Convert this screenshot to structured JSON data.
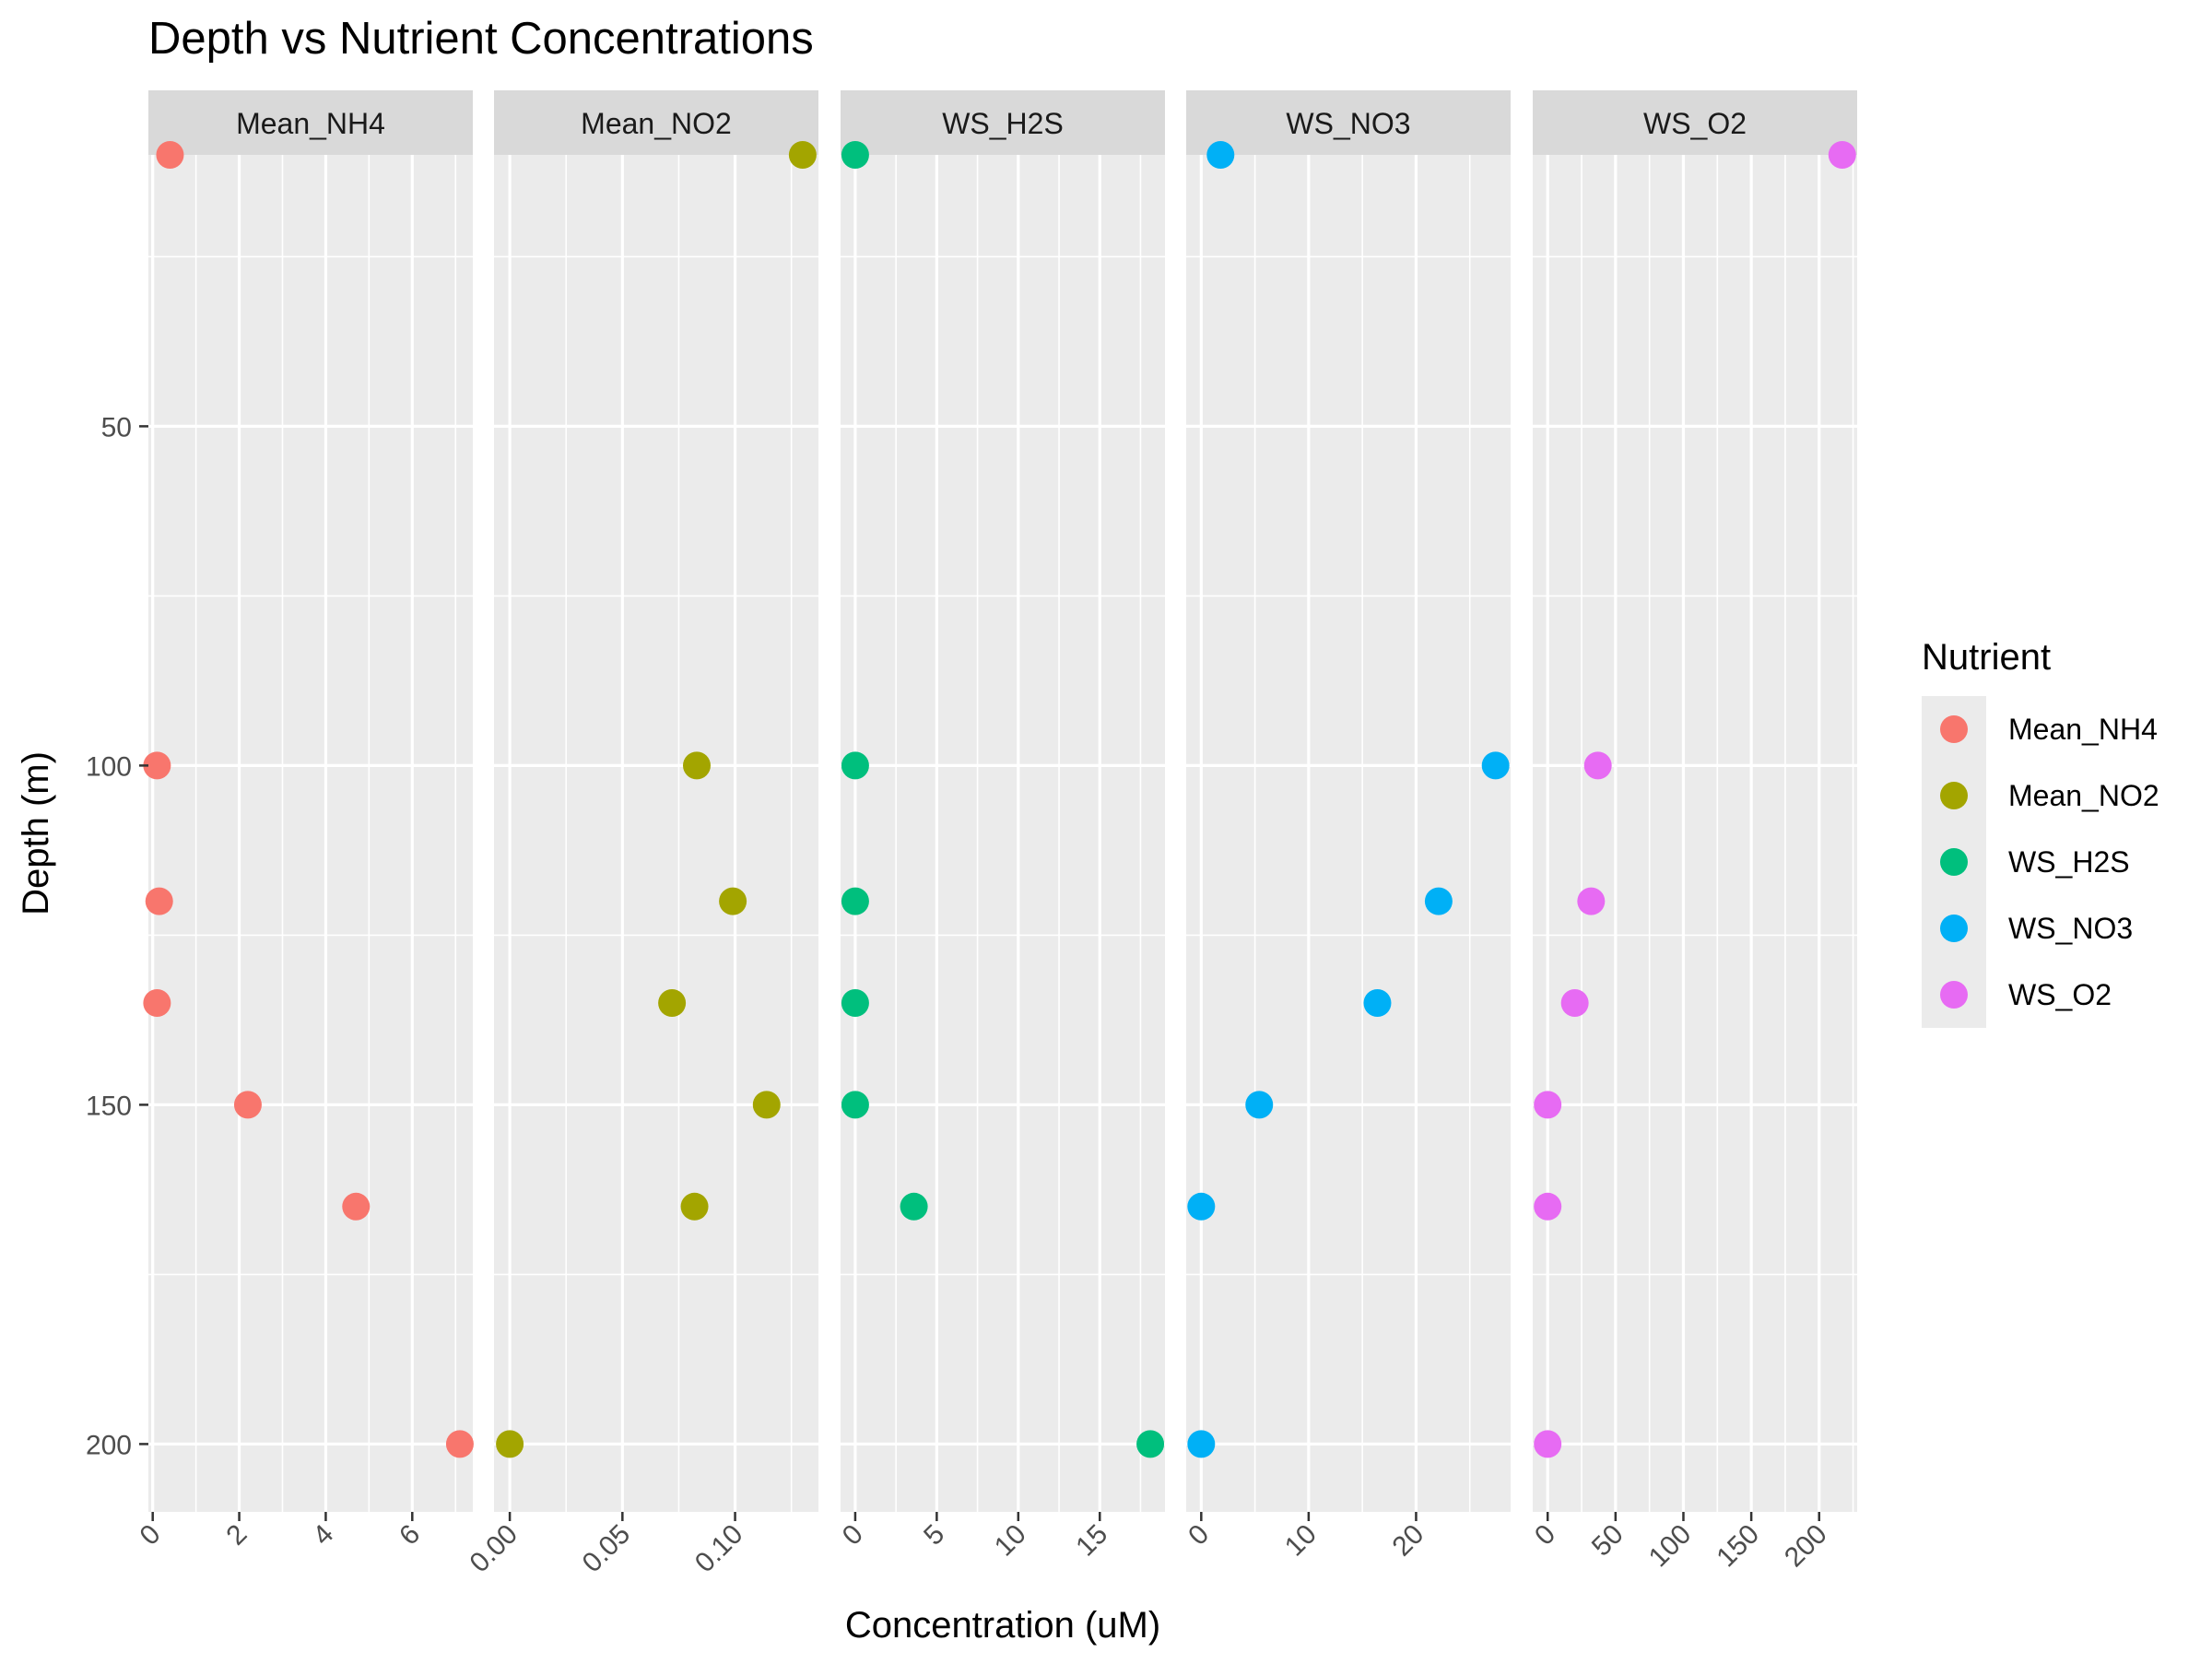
{
  "chart_data": {
    "type": "scatter",
    "title": "Depth vs Nutrient Concentrations",
    "xlabel": "Concentration (uM)",
    "ylabel": "Depth (m)",
    "y_reversed": true,
    "ylim": [
      10,
      210
    ],
    "y_ticks": [
      50,
      100,
      150,
      200
    ],
    "grid": true,
    "legend": {
      "title": "Nutrient",
      "position": "right"
    },
    "depths": [
      10,
      100,
      120,
      135,
      150,
      165,
      200
    ],
    "series": [
      {
        "name": "Mean_NH4",
        "color": "#F8766D",
        "xlim": [
          -0.1,
          7.4
        ],
        "x_ticks": [
          0,
          2,
          4,
          6
        ],
        "x_tick_labels": [
          "0",
          "2",
          "4",
          "6"
        ],
        "points": [
          [
            0.4,
            10
          ],
          [
            0.1,
            100
          ],
          [
            0.15,
            120
          ],
          [
            0.1,
            135
          ],
          [
            2.2,
            150
          ],
          [
            4.7,
            165
          ],
          [
            7.1,
            200
          ]
        ]
      },
      {
        "name": "Mean_NO2",
        "color": "#A3A500",
        "xlim": [
          -0.007,
          0.137
        ],
        "x_ticks": [
          0.0,
          0.05,
          0.1
        ],
        "x_tick_labels": [
          "0.00",
          "0.05",
          "0.10"
        ],
        "points": [
          [
            0.13,
            10
          ],
          [
            0.083,
            100
          ],
          [
            0.099,
            120
          ],
          [
            0.072,
            135
          ],
          [
            0.114,
            150
          ],
          [
            0.082,
            165
          ],
          [
            0.0,
            200
          ]
        ]
      },
      {
        "name": "WS_H2S",
        "color": "#00BF7D",
        "xlim": [
          -0.9,
          19.0
        ],
        "x_ticks": [
          0,
          5,
          10,
          15
        ],
        "x_tick_labels": [
          "0",
          "5",
          "10",
          "15"
        ],
        "points": [
          [
            0.0,
            10
          ],
          [
            0.0,
            100
          ],
          [
            0.0,
            120
          ],
          [
            0.0,
            135
          ],
          [
            0.0,
            150
          ],
          [
            3.6,
            165
          ],
          [
            18.1,
            200
          ]
        ]
      },
      {
        "name": "WS_NO3",
        "color": "#00B0F6",
        "xlim": [
          -1.4,
          28.8
        ],
        "x_ticks": [
          0,
          10,
          20
        ],
        "x_tick_labels": [
          "0",
          "10",
          "20"
        ],
        "points": [
          [
            1.8,
            10
          ],
          [
            27.4,
            100
          ],
          [
            22.1,
            120
          ],
          [
            16.4,
            135
          ],
          [
            5.4,
            150
          ],
          [
            0.0,
            165
          ],
          [
            0.0,
            200
          ]
        ]
      },
      {
        "name": "WS_O2",
        "color": "#E76BF3",
        "xlim": [
          -11,
          228
        ],
        "x_ticks": [
          0,
          50,
          100,
          150,
          200
        ],
        "x_tick_labels": [
          "0",
          "50",
          "100",
          "150",
          "200"
        ],
        "points": [
          [
            217,
            10
          ],
          [
            37,
            100
          ],
          [
            32,
            120
          ],
          [
            20,
            135
          ],
          [
            0,
            150
          ],
          [
            0,
            165
          ],
          [
            0,
            200
          ]
        ]
      }
    ]
  }
}
